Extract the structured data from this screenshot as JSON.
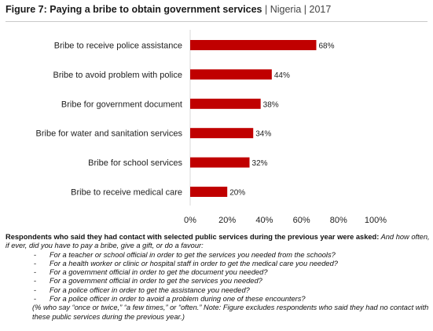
{
  "header": {
    "title": "Figure 7: Paying a bribe to obtain government services",
    "separator1": "|",
    "country": "Nigeria",
    "separator2": "|",
    "year": "2017"
  },
  "colors": {
    "bar": "#c00000",
    "axis": "#d9d9d9"
  },
  "chart_data": {
    "type": "bar",
    "orientation": "horizontal",
    "categories": [
      "Bribe to receive police assistance",
      "Bribe to avoid problem with police",
      "Bribe for government document",
      "Bribe for water and sanitation services",
      "Bribe for school services",
      "Bribe to receive medical care"
    ],
    "values": [
      68,
      44,
      38,
      34,
      32,
      20
    ],
    "value_labels": [
      "68%",
      "44%",
      "38%",
      "34%",
      "32%",
      "20%"
    ],
    "xlim": [
      0,
      100
    ],
    "x_ticks": [
      0,
      20,
      40,
      60,
      80,
      100
    ],
    "x_tick_labels": [
      "0%",
      "20%",
      "40%",
      "60%",
      "80%",
      "100%"
    ],
    "grid": false,
    "legend": "none"
  },
  "note": {
    "lead": "Respondents who said they had contact with selected public services during the previous year were asked:",
    "question": " And how often, if ever, did you have to pay a bribe, give a gift, or do a favour:",
    "items": [
      "For a teacher or school official in order to get the services you needed from the schools?",
      "For a health worker or clinic or hospital staff in order to get the medical care you needed?",
      "For a government official in order to get the document you needed?",
      "For a government official in order to get the services you needed?",
      "For a police officer in order to get the assistance you needed?",
      "For a police officer in order to avoid a problem during one of these encounters?"
    ],
    "dash": "-",
    "footnote": "(% who say “once or twice,” “a few times,” or “often.” Note: Figure excludes respondents who said they had no contact with these public services during the previous year.)"
  }
}
